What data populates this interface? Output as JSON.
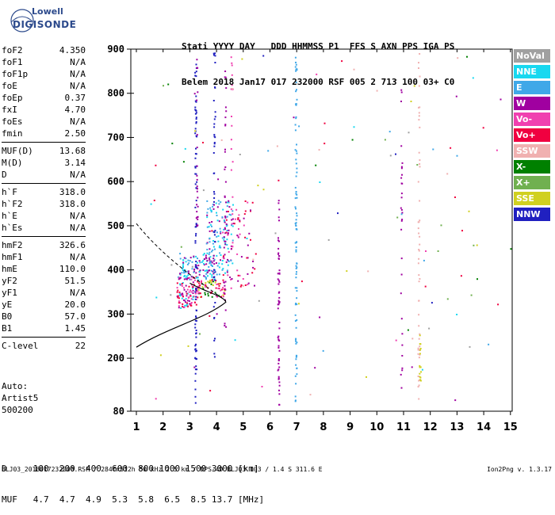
{
  "logo": {
    "line1": "Lowell",
    "line2": "DIGISONDE"
  },
  "header": {
    "line1": "Stati YYYY DAY   DDD HHMMSS P1  FFS S AXN PPS IGA PS",
    "line2": "Belem 2018 Jan17 017 232000 RSF 005 2 713 100 03+ C0"
  },
  "params": [
    [
      {
        "k": "foF2",
        "v": "4.350"
      },
      {
        "k": "foF1",
        "v": "N/A"
      },
      {
        "k": "foF1p",
        "v": "N/A"
      },
      {
        "k": "foE",
        "v": "N/A"
      },
      {
        "k": "foEp",
        "v": "0.37"
      },
      {
        "k": "fxI",
        "v": "4.70"
      },
      {
        "k": "foEs",
        "v": "N/A"
      },
      {
        "k": "fmin",
        "v": "2.50"
      }
    ],
    [
      {
        "k": "MUF(D)",
        "v": "13.68"
      },
      {
        "k": "M(D)",
        "v": "3.14"
      },
      {
        "k": "D",
        "v": "N/A"
      }
    ],
    [
      {
        "k": "h`F",
        "v": "318.0"
      },
      {
        "k": "h`F2",
        "v": "318.0"
      },
      {
        "k": "h`E",
        "v": "N/A"
      },
      {
        "k": "h`Es",
        "v": "N/A"
      }
    ],
    [
      {
        "k": "hmF2",
        "v": "326.6"
      },
      {
        "k": "hmF1",
        "v": "N/A"
      },
      {
        "k": "hmE",
        "v": "110.0"
      },
      {
        "k": "yF2",
        "v": "51.5"
      },
      {
        "k": "yF1",
        "v": "N/A"
      },
      {
        "k": "yE",
        "v": "20.0"
      },
      {
        "k": "B0",
        "v": "57.0"
      },
      {
        "k": "B1",
        "v": "1.45"
      }
    ],
    [
      {
        "k": "C-level",
        "v": "22"
      }
    ]
  ],
  "auto": [
    "Auto:",
    "Artist5",
    "500200"
  ],
  "legend": [
    {
      "label": "NoVal",
      "color": "#a0a0a0"
    },
    {
      "label": "NNE",
      "color": "#18d8f0"
    },
    {
      "label": "E",
      "color": "#40a8e8"
    },
    {
      "label": "W",
      "color": "#a000a0"
    },
    {
      "label": "Vo-",
      "color": "#f040b0"
    },
    {
      "label": "Vo+",
      "color": "#f00040"
    },
    {
      "label": "SSW",
      "color": "#f0b0b0"
    },
    {
      "label": "X-",
      "color": "#008000"
    },
    {
      "label": "X+",
      "color": "#70b050"
    },
    {
      "label": "SSE",
      "color": "#d0d020"
    },
    {
      "label": "NNW",
      "color": "#2020c0"
    }
  ],
  "axes": {
    "y_ticks": [
      80,
      200,
      300,
      400,
      500,
      600,
      700,
      800,
      900
    ],
    "x_ticks": [
      1,
      2,
      3,
      4,
      5,
      6,
      7,
      8,
      9,
      10,
      11,
      12,
      13,
      14,
      15
    ]
  },
  "bottom": {
    "line1": "D     100  200  400  600  800 1000 1500 3000 [km]",
    "line2": "MUF   4.7  4.7  4.9  5.3  5.8  6.5  8.5 13.7 [MHz]"
  },
  "footer": "BLJ03_2018017232000.RSF / 284fx512h 50 kHz 2.5 km / DPS-4D BLJ03 103 / 1.4 S 311.6 E",
  "version": "Ion2Png v. 1.3.17"
}
